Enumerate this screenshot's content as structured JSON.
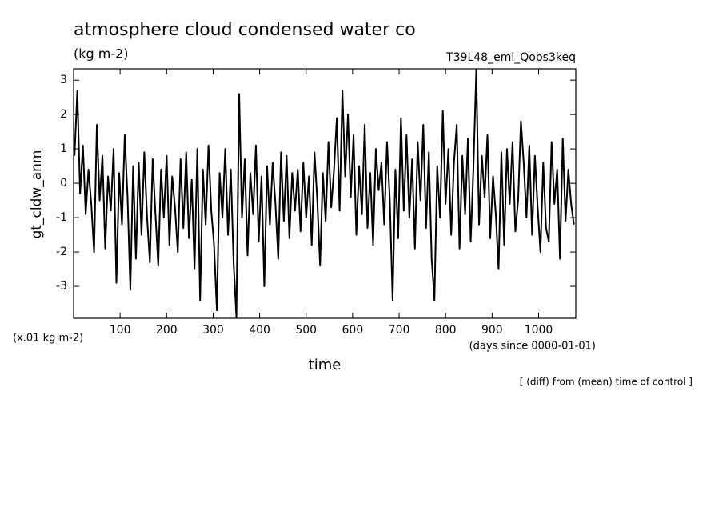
{
  "chart_data": {
    "type": "line",
    "title": "atmosphere cloud condensed water co",
    "subtitle": "(kg m-2)",
    "run_label": "T39L48_eml_Qobs3keq",
    "ylabel": "gt_cldw_anm",
    "y_units": "(x.01 kg m-2)",
    "xlabel": "time",
    "x_units": "(days since 0000-01-01)",
    "note": "[ (diff) from (mean) time of control ]",
    "color": "#000000",
    "xlim": [
      0,
      1080
    ],
    "ylim": [
      -3.93,
      3.33
    ],
    "xticks": [
      100,
      200,
      300,
      400,
      500,
      600,
      700,
      800,
      900,
      1000
    ],
    "yticks": [
      -3,
      -2,
      -1,
      0,
      1,
      2,
      3
    ],
    "x": [
      2,
      8,
      14,
      20,
      26,
      32,
      38,
      44,
      50,
      56,
      62,
      68,
      74,
      80,
      86,
      92,
      98,
      104,
      110,
      116,
      122,
      128,
      134,
      140,
      146,
      152,
      158,
      164,
      170,
      176,
      182,
      188,
      194,
      200,
      206,
      212,
      218,
      224,
      230,
      236,
      242,
      248,
      254,
      260,
      266,
      272,
      278,
      284,
      290,
      296,
      302,
      308,
      314,
      320,
      326,
      332,
      338,
      344,
      350,
      356,
      362,
      368,
      374,
      380,
      386,
      392,
      398,
      404,
      410,
      416,
      422,
      428,
      434,
      440,
      446,
      452,
      458,
      464,
      470,
      476,
      482,
      488,
      494,
      500,
      506,
      512,
      518,
      524,
      530,
      536,
      542,
      548,
      554,
      560,
      566,
      572,
      578,
      584,
      590,
      596,
      602,
      608,
      614,
      620,
      626,
      632,
      638,
      644,
      650,
      656,
      662,
      668,
      674,
      680,
      686,
      692,
      698,
      704,
      710,
      716,
      722,
      728,
      734,
      740,
      746,
      752,
      758,
      764,
      770,
      776,
      782,
      788,
      794,
      800,
      806,
      812,
      818,
      824,
      830,
      836,
      842,
      848,
      854,
      860,
      866,
      872,
      878,
      884,
      890,
      896,
      902,
      908,
      914,
      920,
      926,
      932,
      938,
      944,
      950,
      956,
      962,
      968,
      974,
      980,
      986,
      992,
      998,
      1004,
      1010,
      1016,
      1022,
      1028,
      1034,
      1040,
      1046,
      1052,
      1058,
      1064,
      1070,
      1076
    ],
    "values": [
      0.8,
      2.7,
      -0.3,
      1.1,
      -0.9,
      0.4,
      -0.6,
      -2.0,
      1.7,
      -0.5,
      0.8,
      -1.9,
      0.2,
      -0.8,
      1.0,
      -2.9,
      0.3,
      -1.2,
      1.4,
      -0.4,
      -3.1,
      0.5,
      -2.2,
      0.6,
      -1.5,
      0.9,
      -1.0,
      -2.3,
      0.7,
      -0.9,
      -2.4,
      0.4,
      -1.0,
      0.8,
      -1.8,
      0.2,
      -0.7,
      -2.0,
      0.7,
      -1.3,
      0.9,
      -1.6,
      0.1,
      -2.5,
      1.0,
      -3.4,
      0.4,
      -1.2,
      1.1,
      -0.8,
      -1.8,
      -3.7,
      0.3,
      -1.0,
      1.0,
      -1.5,
      0.4,
      -2.3,
      -3.9,
      2.6,
      -1.0,
      0.7,
      -2.1,
      0.3,
      -0.9,
      1.1,
      -1.7,
      0.2,
      -3.0,
      0.5,
      -1.2,
      0.6,
      -0.6,
      -2.2,
      0.9,
      -1.1,
      0.8,
      -1.6,
      0.3,
      -0.8,
      0.4,
      -1.4,
      0.6,
      -1.0,
      0.2,
      -1.8,
      0.9,
      -0.5,
      -2.4,
      0.3,
      -1.1,
      1.2,
      -0.7,
      0.4,
      1.9,
      -0.8,
      2.7,
      0.2,
      2.0,
      -0.4,
      1.4,
      -1.5,
      0.5,
      -0.9,
      1.7,
      -1.3,
      0.3,
      -1.8,
      1.0,
      -0.2,
      0.6,
      -1.2,
      1.2,
      -0.5,
      -3.4,
      0.4,
      -1.6,
      1.9,
      -0.8,
      1.4,
      -1.0,
      0.7,
      -1.9,
      1.2,
      -0.5,
      1.7,
      -1.3,
      0.9,
      -2.2,
      -3.4,
      0.5,
      -1.0,
      2.1,
      -0.6,
      1.0,
      -1.5,
      0.6,
      1.7,
      -1.9,
      0.8,
      -0.9,
      1.3,
      -1.7,
      0.5,
      3.3,
      -1.2,
      0.8,
      -0.4,
      1.4,
      -1.6,
      0.2,
      -0.9,
      -2.5,
      0.9,
      -1.8,
      1.0,
      -0.6,
      1.2,
      -1.4,
      -0.5,
      1.8,
      0.6,
      -1.0,
      1.1,
      -1.5,
      0.8,
      -0.7,
      -2.0,
      0.6,
      -1.3,
      -1.7,
      1.2,
      -0.6,
      0.4,
      -2.2,
      1.3,
      -1.1,
      0.4,
      -0.6,
      -1.2
    ]
  }
}
